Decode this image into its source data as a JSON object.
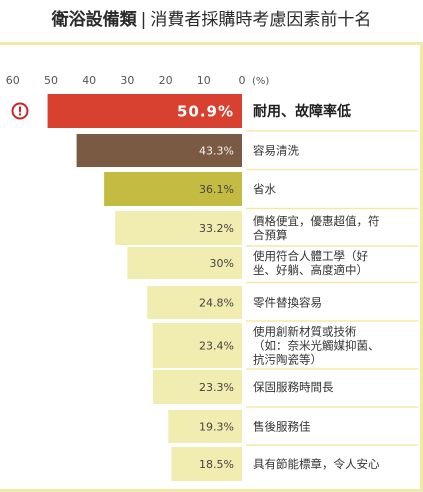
{
  "header": {
    "title": "衛浴設備類",
    "separator": "|",
    "subtitle": "消費者採購時考慮因素前十名"
  },
  "colors": {
    "lead_bar": "#d8402f",
    "second_bar": "#7b5a44",
    "third_bar": "#c4bc42",
    "other_bars": "#f1ecb0",
    "accent_rule": "#f3e9a6",
    "alert_icon": "#c62828"
  },
  "icons": {
    "lead_marker": "exclamation-circle-icon"
  },
  "chart_data": {
    "type": "bar",
    "orientation": "horizontal",
    "direction": "right-to-left",
    "title": "衛浴設備類",
    "subtitle": "消費者採購時考慮因素前十名",
    "unit": "(%)",
    "xlim": [
      0,
      60
    ],
    "ticks": [
      "60",
      "50",
      "40",
      "30",
      "20",
      "10",
      "0"
    ],
    "grid": false,
    "categories": [
      [
        "耐用、故障率低"
      ],
      [
        "容易清洗"
      ],
      [
        "省水"
      ],
      [
        "價格便宜，優惠超值，符",
        "合預算"
      ],
      [
        "使用符合人體工學（好",
        "坐、好躺、高度適中）"
      ],
      [
        "零件替換容易"
      ],
      [
        "使用創新材質或技術",
        "（如：奈米光觸媒抑菌、",
        "抗污陶瓷等）"
      ],
      [
        "保固服務時間長"
      ],
      [
        "售後服務佳"
      ],
      [
        "具有節能標章，令人安心"
      ]
    ],
    "values": [
      50.9,
      43.3,
      36.1,
      33.2,
      30,
      24.8,
      23.4,
      23.3,
      19.3,
      18.5
    ],
    "value_labels": [
      "50.9%",
      "43.3%",
      "36.1%",
      "33.2%",
      "30%",
      "24.8%",
      "23.4%",
      "23.3%",
      "19.3%",
      "18.5%"
    ]
  }
}
